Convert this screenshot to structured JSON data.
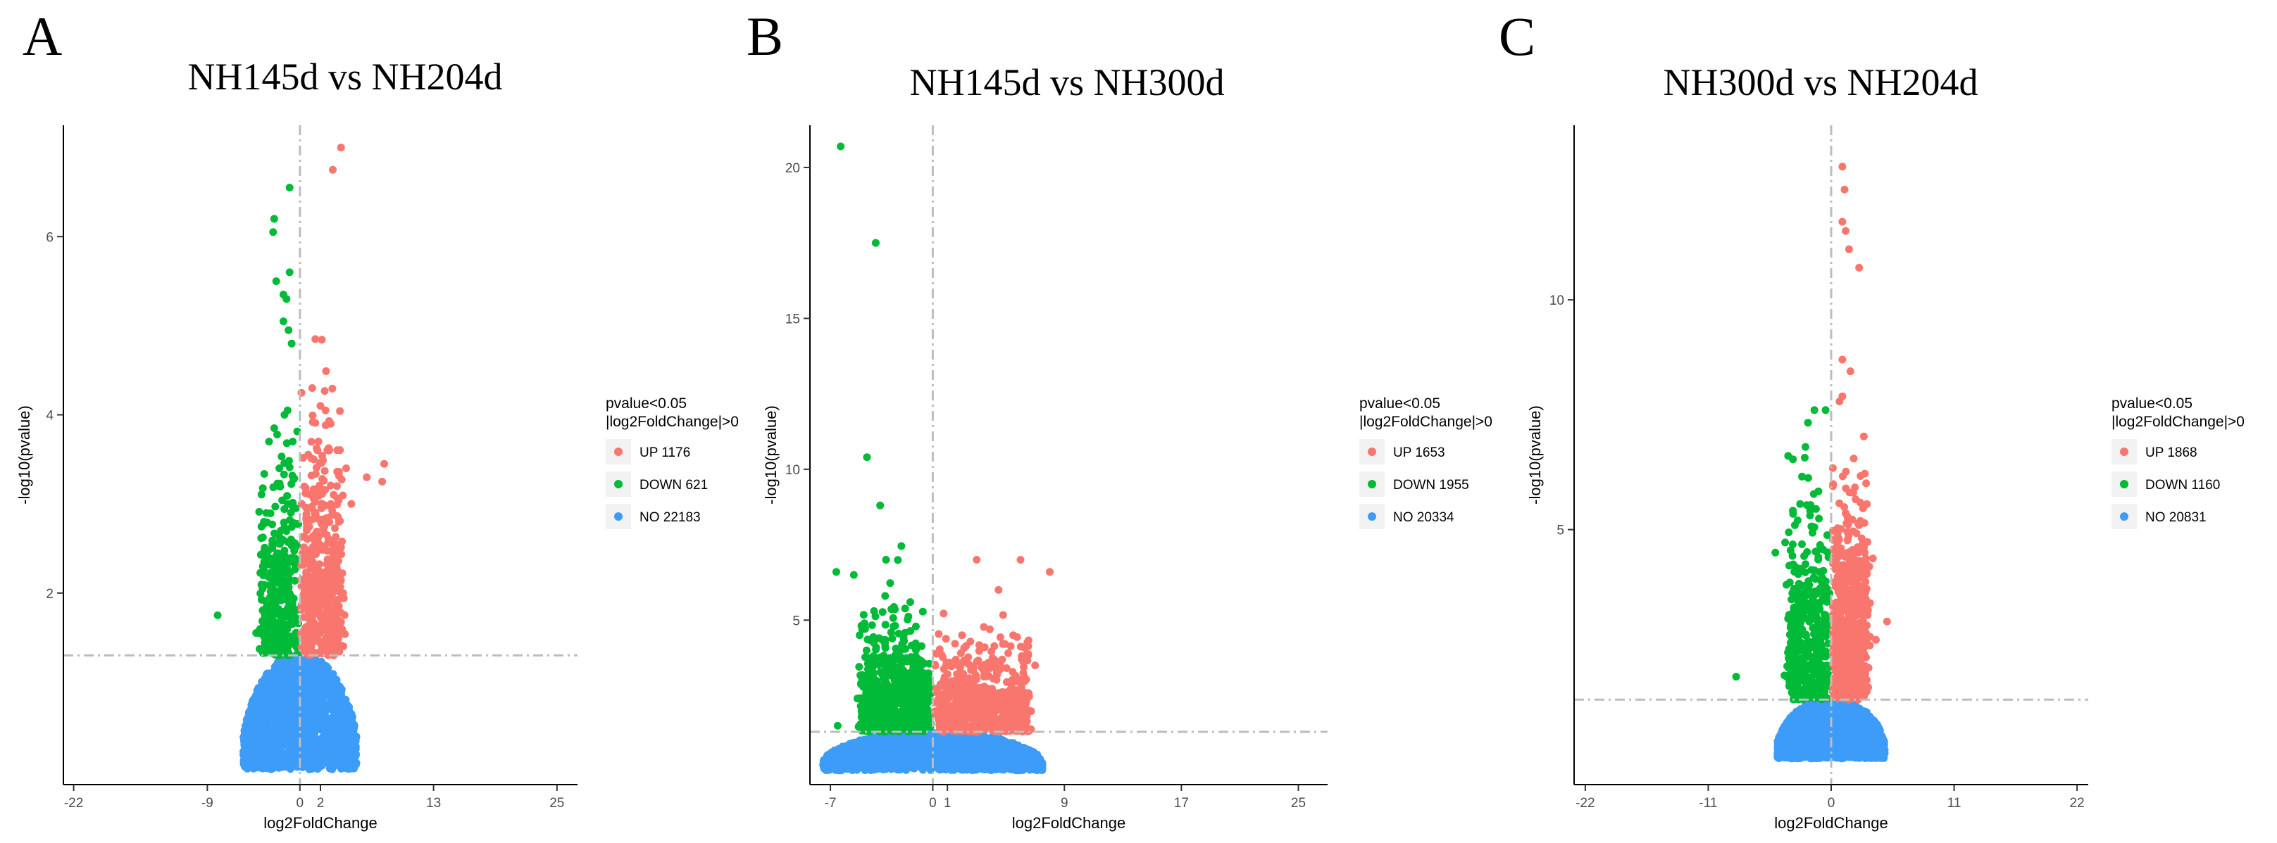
{
  "figure": {
    "legend_title_line1": "pvalue<0.05",
    "legend_title_line2": "|log2FoldChange|>0",
    "colors": {
      "UP": "#f8766d",
      "DOWN": "#00ba38",
      "NO": "#3d9cf8",
      "threshold": "#bdbdbd"
    }
  },
  "chart_data": [
    {
      "type": "scatter",
      "panel_letter": "A",
      "title": "NH145d vs NH204d",
      "xlabel": "log2FoldChange",
      "ylabel": "-log10(pvalue)",
      "xlim": [
        -23,
        27
      ],
      "ylim": [
        -0.15,
        7.25
      ],
      "xticks": [
        -22,
        -9,
        0,
        2,
        13,
        25
      ],
      "yticks": [
        2,
        4,
        6
      ],
      "hline": 1.3,
      "vline": 0,
      "legend": [
        {
          "key": "UP",
          "label": "UP 1176"
        },
        {
          "key": "DOWN",
          "label": "DOWN 621"
        },
        {
          "key": "NO",
          "label": "NO 22183"
        }
      ],
      "series": [
        {
          "name": "UP",
          "points": [
            [
              4.0,
              7.0
            ],
            [
              3.2,
              6.75
            ],
            [
              1.5,
              4.85
            ],
            [
              2.5,
              4.05
            ],
            [
              2.0,
              4.1
            ],
            [
              8.2,
              3.45
            ],
            [
              8.0,
              3.25
            ],
            [
              6.5,
              3.3
            ],
            [
              1.2,
              4.3
            ],
            [
              3.0,
              3.9
            ],
            [
              4.5,
              3.4
            ],
            [
              5.0,
              3.0
            ],
            [
              2.8,
              3.6
            ],
            [
              1.8,
              3.7
            ],
            [
              3.6,
              3.2
            ]
          ]
        },
        {
          "name": "DOWN",
          "points": [
            [
              -1.0,
              6.55
            ],
            [
              -2.5,
              6.2
            ],
            [
              -2.6,
              6.05
            ],
            [
              -1.0,
              5.6
            ],
            [
              -2.3,
              5.5
            ],
            [
              -1.6,
              5.35
            ],
            [
              -1.3,
              5.3
            ],
            [
              -1.6,
              5.05
            ],
            [
              -1.1,
              4.95
            ],
            [
              -0.8,
              4.8
            ],
            [
              -1.2,
              4.05
            ],
            [
              -1.5,
              4.0
            ],
            [
              -2.5,
              3.85
            ],
            [
              -3.0,
              3.7
            ],
            [
              -0.7,
              3.7
            ],
            [
              -8.0,
              1.75
            ],
            [
              -3.5,
              2.8
            ],
            [
              -2.0,
              3.4
            ]
          ]
        },
        {
          "name": "NO",
          "points": []
        }
      ]
    },
    {
      "type": "scatter",
      "panel_letter": "B",
      "title": "NH145d vs NH300d",
      "xlabel": "log2FoldChange",
      "ylabel": "-log10(pvalue)",
      "xlim": [
        -8.4,
        27
      ],
      "ylim": [
        -0.45,
        21.4
      ],
      "xticks": [
        -7,
        0,
        1,
        9,
        17,
        25
      ],
      "yticks": [
        5,
        10,
        15,
        20
      ],
      "hline": 1.3,
      "vline": 0,
      "legend": [
        {
          "key": "UP",
          "label": "UP 1653"
        },
        {
          "key": "DOWN",
          "label": "DOWN 1955"
        },
        {
          "key": "NO",
          "label": "NO 20334"
        }
      ],
      "series": [
        {
          "name": "UP",
          "points": [
            [
              8.0,
              6.6
            ],
            [
              6.0,
              7.0
            ],
            [
              3.0,
              7.0
            ],
            [
              4.5,
              6.0
            ],
            [
              5.5,
              4.5
            ],
            [
              2.0,
              4.5
            ],
            [
              7.0,
              3.5
            ]
          ]
        },
        {
          "name": "DOWN",
          "points": [
            [
              -6.3,
              20.7
            ],
            [
              -3.9,
              17.5
            ],
            [
              -4.5,
              10.4
            ],
            [
              -3.6,
              8.8
            ],
            [
              -5.4,
              6.5
            ],
            [
              -6.6,
              6.6
            ],
            [
              -3.2,
              7.0
            ],
            [
              -6.5,
              1.5
            ],
            [
              -5.0,
              4.5
            ]
          ]
        },
        {
          "name": "NO",
          "points": []
        }
      ]
    },
    {
      "type": "scatter",
      "panel_letter": "C",
      "title": "NH300d vs NH204d",
      "xlabel": "log2FoldChange",
      "ylabel": "-log10(pvalue)",
      "xlim": [
        -23,
        23
      ],
      "ylim": [
        -0.55,
        13.8
      ],
      "xticks": [
        -22,
        -11,
        0,
        11,
        22
      ],
      "yticks": [
        5,
        10
      ],
      "hline": 1.3,
      "vline": 0,
      "legend": [
        {
          "key": "UP",
          "label": "UP 1868"
        },
        {
          "key": "DOWN",
          "label": "DOWN 1160"
        },
        {
          "key": "NO",
          "label": "NO 20831"
        }
      ],
      "series": [
        {
          "name": "UP",
          "points": [
            [
              1.0,
              12.9
            ],
            [
              1.2,
              12.4
            ],
            [
              1.0,
              11.7
            ],
            [
              1.3,
              11.5
            ],
            [
              1.6,
              11.1
            ],
            [
              2.5,
              10.7
            ],
            [
              1.0,
              8.7
            ],
            [
              1.0,
              7.9
            ],
            [
              5.0,
              3.0
            ],
            [
              3.0,
              4.5
            ],
            [
              4.0,
              2.6
            ]
          ]
        },
        {
          "name": "DOWN",
          "points": [
            [
              -1.5,
              7.6
            ],
            [
              -0.5,
              7.6
            ],
            [
              -2.3,
              6.8
            ],
            [
              -8.5,
              1.8
            ],
            [
              -5.0,
              4.5
            ],
            [
              -4.0,
              3.8
            ],
            [
              -3.0,
              5.2
            ]
          ]
        },
        {
          "name": "NO",
          "points": []
        }
      ]
    }
  ]
}
